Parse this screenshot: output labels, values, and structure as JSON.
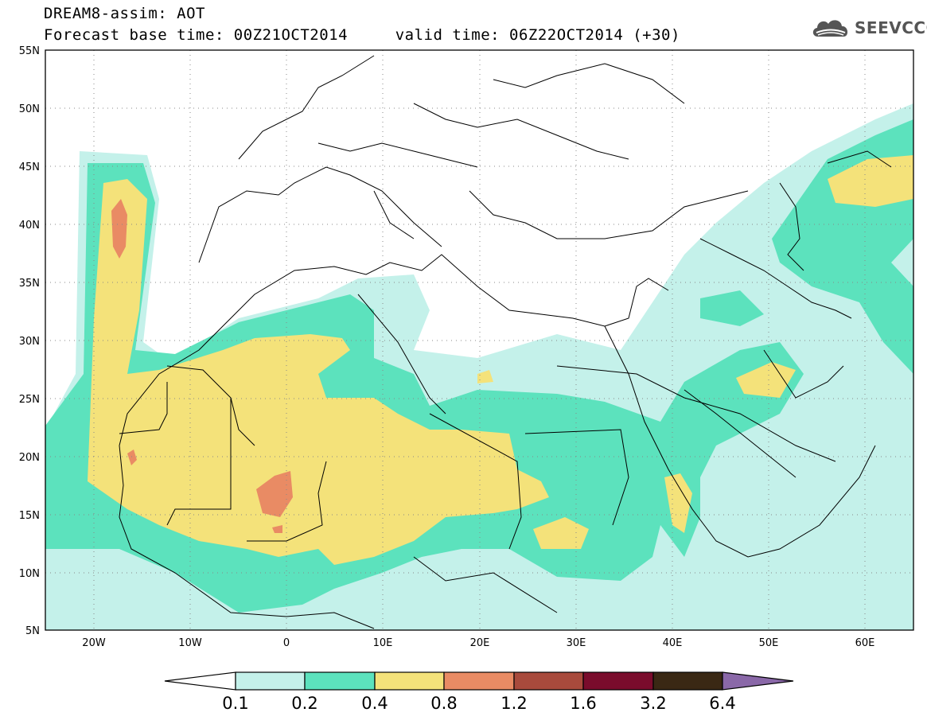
{
  "header": {
    "line1": "DREAM8-assim: AOT",
    "line2": "Forecast base time: 00Z21OCT2014     valid time: 06Z22OCT2014 (+30)"
  },
  "logo": {
    "text": "SEEVCCC",
    "icon": "cloud-icon"
  },
  "map": {
    "lat_labels": [
      "55N",
      "50N",
      "45N",
      "40N",
      "35N",
      "30N",
      "25N",
      "20N",
      "15N",
      "10N",
      "5N"
    ],
    "lon_labels": [
      "20W",
      "10W",
      "0",
      "10E",
      "20E",
      "30E",
      "40E",
      "50E",
      "60E"
    ],
    "lat_range": [
      5,
      55
    ],
    "lon_range": [
      -25,
      65
    ],
    "grid": "dotted"
  },
  "colorbar": {
    "levels": [
      "0.1",
      "0.2",
      "0.4",
      "0.8",
      "1.2",
      "1.6",
      "3.2",
      "6.4"
    ],
    "colors": [
      "#ffffff",
      "#c4f1ea",
      "#5ce2bd",
      "#f4e27a",
      "#e98b64",
      "#a84a3c",
      "#7a0c2c",
      "#3a2814",
      "#8a68a8"
    ]
  },
  "palette": {
    "c1": "#c4f1ea",
    "c2": "#5ce2bd",
    "c3": "#f4e27a",
    "c4": "#e98b64"
  }
}
